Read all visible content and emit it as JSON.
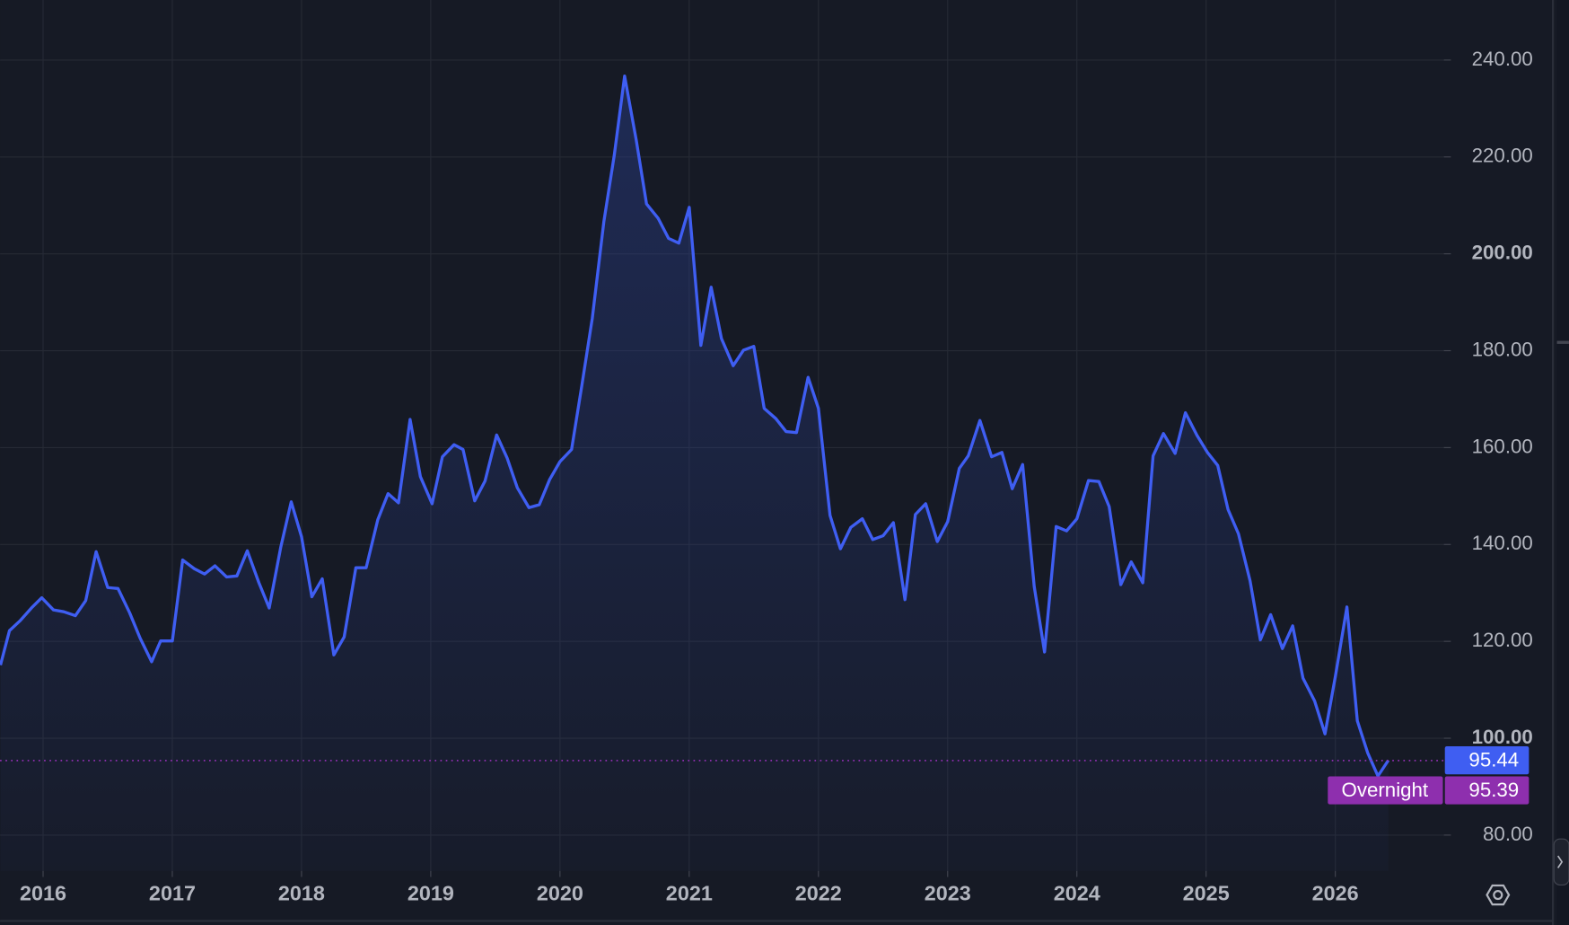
{
  "chart_data": {
    "type": "line",
    "color": "#3f5ef2",
    "grid": true,
    "xlim": [
      2015.667,
      2026.84
    ],
    "ylim": [
      72.6,
      252.4
    ],
    "xticks": [
      2016,
      2017,
      2018,
      2019,
      2020,
      2021,
      2022,
      2023,
      2024,
      2025,
      2026
    ],
    "yticks": [
      {
        "value": 80,
        "label": "80.00"
      },
      {
        "value": 100,
        "label": "100.00"
      },
      {
        "value": 120,
        "label": "120.00"
      },
      {
        "value": 140,
        "label": "140.00"
      },
      {
        "value": 160,
        "label": "160.00"
      },
      {
        "value": 180,
        "label": "180.00"
      },
      {
        "value": 200,
        "label": "200.00"
      },
      {
        "value": 220,
        "label": "220.00"
      },
      {
        "value": 240,
        "label": "240.00"
      }
    ],
    "x": [
      2015.67,
      2015.74,
      2015.82,
      2015.91,
      2015.99,
      2016.08,
      2016.16,
      2016.25,
      2016.33,
      2016.41,
      2016.5,
      2016.58,
      2016.67,
      2016.75,
      2016.84,
      2016.91,
      2017.0,
      2017.08,
      2017.17,
      2017.25,
      2017.33,
      2017.42,
      2017.5,
      2017.58,
      2017.67,
      2017.75,
      2017.84,
      2017.92,
      2018.0,
      2018.08,
      2018.16,
      2018.25,
      2018.33,
      2018.42,
      2018.5,
      2018.59,
      2018.67,
      2018.75,
      2018.84,
      2018.92,
      2019.01,
      2019.09,
      2019.18,
      2019.25,
      2019.34,
      2019.42,
      2019.51,
      2019.59,
      2019.67,
      2019.76,
      2019.84,
      2019.92,
      2020.0,
      2020.09,
      2020.17,
      2020.25,
      2020.34,
      2020.42,
      2020.5,
      2020.59,
      2020.67,
      2020.76,
      2020.84,
      2020.92,
      2021.0,
      2021.09,
      2021.17,
      2021.25,
      2021.34,
      2021.42,
      2021.5,
      2021.58,
      2021.67,
      2021.75,
      2021.83,
      2021.92,
      2022.0,
      2022.09,
      2022.17,
      2022.25,
      2022.34,
      2022.42,
      2022.5,
      2022.58,
      2022.67,
      2022.75,
      2022.83,
      2022.92,
      2023.0,
      2023.09,
      2023.16,
      2023.25,
      2023.34,
      2023.42,
      2023.5,
      2023.58,
      2023.67,
      2023.75,
      2023.84,
      2023.92,
      2024.0,
      2024.09,
      2024.17,
      2024.25,
      2024.34,
      2024.42,
      2024.51,
      2024.59,
      2024.67,
      2024.76,
      2024.84,
      2024.93,
      2025.01,
      2025.09,
      2025.17,
      2025.25,
      2025.34,
      2025.42,
      2025.5,
      2025.59,
      2025.67,
      2025.75,
      2025.84,
      2025.92,
      2026.0,
      2026.09,
      2026.17,
      2026.25,
      2026.33,
      2026.41
    ],
    "values": [
      115.1,
      122.2,
      124.2,
      126.9,
      129.0,
      126.5,
      126.1,
      125.3,
      128.4,
      138.5,
      131.1,
      130.9,
      125.9,
      120.7,
      115.8,
      120.1,
      120.1,
      136.8,
      135.0,
      133.9,
      135.6,
      133.3,
      133.5,
      138.7,
      132.1,
      126.9,
      139.5,
      148.8,
      141.6,
      129.2,
      132.9,
      117.2,
      120.9,
      135.2,
      135.2,
      145.1,
      150.5,
      148.6,
      165.8,
      154.0,
      148.4,
      158.1,
      160.6,
      159.6,
      149.0,
      153.1,
      162.6,
      157.9,
      151.7,
      147.6,
      148.2,
      153.4,
      157.1,
      159.6,
      173.0,
      186.7,
      206.7,
      220.4,
      236.7,
      223.5,
      210.3,
      207.3,
      203.2,
      202.2,
      209.6,
      181.1,
      193.1,
      182.5,
      176.9,
      180.1,
      180.9,
      168.1,
      166.0,
      163.3,
      163.1,
      174.5,
      168.1,
      146.0,
      139.1,
      143.5,
      145.3,
      141.0,
      141.8,
      144.5,
      128.6,
      146.2,
      148.4,
      140.6,
      144.7,
      155.7,
      158.3,
      165.6,
      158.1,
      159.0,
      151.5,
      156.5,
      131.3,
      117.8,
      143.7,
      142.8,
      145.3,
      153.2,
      153.0,
      147.8,
      131.7,
      136.4,
      132.1,
      158.3,
      162.9,
      158.8,
      167.2,
      162.5,
      159.0,
      156.3,
      147.2,
      142.2,
      132.5,
      120.3,
      125.5,
      118.5,
      123.2,
      112.4,
      107.7,
      100.9,
      112.7,
      127.1,
      103.6,
      97.0,
      92.2,
      95.44
    ],
    "last_price": 95.44,
    "last_price_color": "#3f5ef2",
    "overnight_label": "Overnight",
    "overnight_price": 95.39,
    "overnight_color": "#8e2fae"
  }
}
